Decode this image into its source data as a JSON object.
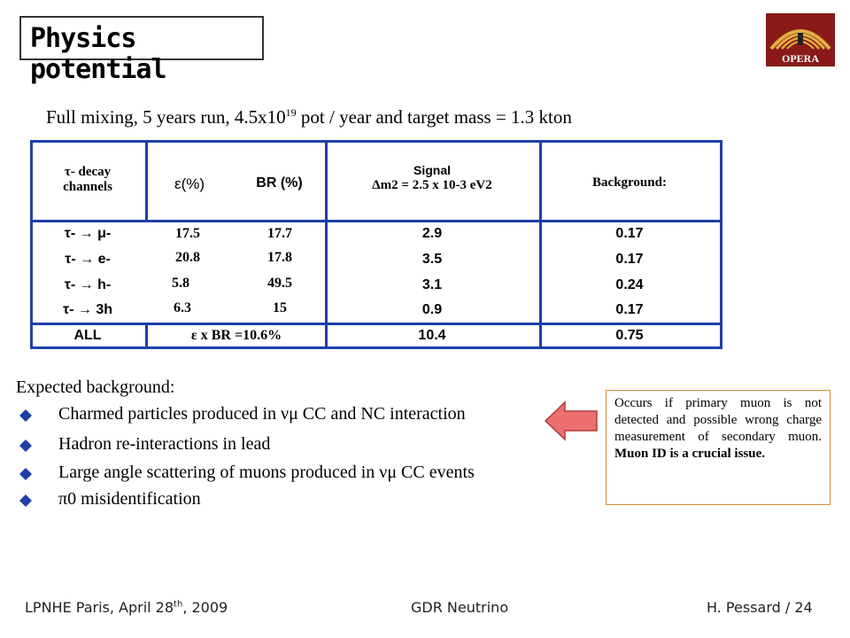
{
  "slide": {
    "title": "Physics potential",
    "logo_text": "OPERA",
    "subtitle_prefix": "Full mixing, 5 years run, 4.5x10",
    "subtitle_exp": "19",
    "subtitle_suffix": " pot / year and target mass = 1.3 kton"
  },
  "table": {
    "headers": {
      "channel_line1": "τ- decay",
      "channel_line2": "channels",
      "eff": "ε(%)",
      "br": "BR (%)",
      "signal_line1": "Signal",
      "signal_line2": "Δm2  = 2.5 x 10-3 eV2",
      "background": "Background:"
    },
    "rows": [
      {
        "channel": "τ- → μ-",
        "eff": "17.5",
        "br": "17.7",
        "signal": "2.9",
        "background": "0.17"
      },
      {
        "channel": "τ- → e-",
        "eff": "20.8",
        "br": "17.8",
        "signal": "3.5",
        "background": "0.17"
      },
      {
        "channel": "τ- → h-",
        "eff": "5.8",
        "br": "49.5",
        "signal": "3.1",
        "background": "0.24"
      },
      {
        "channel": "τ- → 3h",
        "eff": "6.3",
        "br": "15",
        "signal": "0.9",
        "background": "0.17"
      }
    ],
    "total": {
      "channel": "ALL",
      "eff_br": "ε x BR =10.6%",
      "signal": "10.4",
      "background": "0.75"
    }
  },
  "background_section": {
    "heading": "Expected background:",
    "items": [
      "Charmed particles produced in νμ CC and NC interaction",
      "Hadron re-interactions in lead",
      "Large angle scattering of muons produced in νμ CC events",
      "π0 misidentification"
    ]
  },
  "note": {
    "text": "Occurs if primary muon is not detected and possible wrong charge measurement of secondary muon.",
    "bold_text": "Muon ID is a crucial issue."
  },
  "footer": {
    "left_prefix": "LPNHE Paris, April 28",
    "left_sup": "th",
    "left_suffix": ", 2009",
    "center": "GDR Neutrino",
    "right": "H. Pessard / 24"
  },
  "colors": {
    "table_lines": "#1f3fa8",
    "bullet": "#1f3fa8",
    "arrow_fill": "#ee6f6f",
    "arrow_stroke": "#b03a3a",
    "note_border": "#d98a3a",
    "logo_bg": "#8a1a1a",
    "logo_gold": "#e0b040"
  }
}
